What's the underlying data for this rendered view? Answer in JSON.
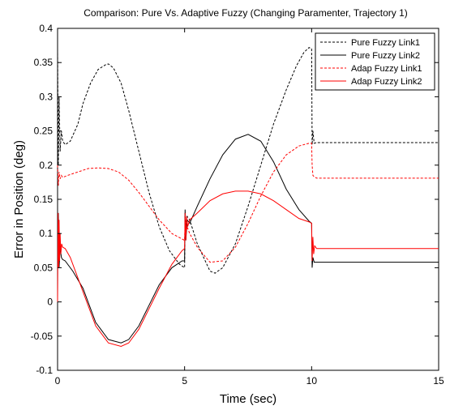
{
  "chart_data": {
    "type": "line",
    "title": "Comparison: Pure Vs. Adaptive Fuzzy (Changing Paramenter, Trajectory 1)",
    "xlabel": "Time (sec)",
    "ylabel": "Error in Position (deg)",
    "xlim": [
      0,
      15
    ],
    "ylim": [
      -0.1,
      0.4
    ],
    "xticks": [
      0,
      5,
      10,
      15
    ],
    "xtick_labels": [
      "0",
      "5",
      "10",
      "15"
    ],
    "yticks": [
      -0.1,
      -0.05,
      0,
      0.05,
      0.1,
      0.15,
      0.2,
      0.25,
      0.3,
      0.35,
      0.4
    ],
    "ytick_labels": [
      "-0.1",
      "-0.05",
      "0",
      "0.05",
      "0.1",
      "0.15",
      "0.2",
      "0.25",
      "0.3",
      "0.35",
      "0.4"
    ],
    "grid": false,
    "legend_position": "top-right",
    "series": [
      {
        "name": "Pure Fuzzy Link1",
        "color": "#000000",
        "dash": "dashed",
        "x": [
          0,
          0.03,
          0.06,
          0.1,
          0.15,
          0.2,
          0.3,
          0.5,
          0.8,
          1.0,
          1.3,
          1.6,
          1.9,
          2.0,
          2.2,
          2.5,
          2.8,
          3.2,
          3.6,
          4.0,
          4.4,
          4.8,
          5.0,
          5.02,
          5.05,
          5.1,
          5.2,
          5.5,
          6.0,
          6.2,
          6.5,
          7.0,
          7.5,
          8.0,
          8.5,
          9.0,
          9.4,
          9.7,
          9.9,
          10.0,
          10.02,
          10.05,
          10.1,
          10.2,
          11,
          12,
          13,
          14,
          15
        ],
        "y": [
          0.37,
          0.2,
          0.3,
          0.22,
          0.25,
          0.235,
          0.23,
          0.235,
          0.26,
          0.29,
          0.32,
          0.34,
          0.347,
          0.348,
          0.342,
          0.32,
          0.28,
          0.22,
          0.16,
          0.11,
          0.075,
          0.055,
          0.05,
          0.13,
          0.11,
          0.125,
          0.12,
          0.085,
          0.045,
          0.042,
          0.05,
          0.085,
          0.14,
          0.2,
          0.26,
          0.31,
          0.345,
          0.365,
          0.372,
          0.37,
          0.23,
          0.25,
          0.232,
          0.233,
          0.233,
          0.233,
          0.233,
          0.233,
          0.233
        ]
      },
      {
        "name": "Pure Fuzzy Link2",
        "color": "#000000",
        "dash": "solid",
        "x": [
          0,
          0.03,
          0.06,
          0.1,
          0.15,
          0.2,
          0.3,
          0.6,
          1.0,
          1.5,
          2.0,
          2.5,
          2.8,
          3.2,
          3.6,
          4.0,
          4.5,
          4.9,
          5.0,
          5.02,
          5.05,
          5.1,
          5.2,
          5.5,
          6.0,
          6.5,
          7.0,
          7.5,
          8.0,
          8.5,
          9.0,
          9.5,
          9.9,
          10.0,
          10.02,
          10.05,
          10.1,
          10.2,
          11,
          12,
          13,
          14,
          15
        ],
        "y": [
          0.06,
          0.13,
          0.05,
          0.08,
          0.065,
          0.062,
          0.06,
          0.045,
          0.02,
          -0.03,
          -0.055,
          -0.06,
          -0.055,
          -0.035,
          -0.005,
          0.025,
          0.05,
          0.06,
          0.06,
          0.135,
          0.09,
          0.12,
          0.115,
          0.14,
          0.18,
          0.215,
          0.238,
          0.245,
          0.235,
          0.205,
          0.165,
          0.135,
          0.118,
          0.115,
          0.05,
          0.065,
          0.058,
          0.058,
          0.058,
          0.058,
          0.058,
          0.058,
          0.058
        ]
      },
      {
        "name": "Adap Fuzzy Link1",
        "color": "#ff0000",
        "dash": "dashed",
        "x": [
          0,
          0.03,
          0.06,
          0.1,
          0.15,
          0.2,
          0.4,
          0.8,
          1.2,
          1.6,
          2.0,
          2.4,
          2.8,
          3.2,
          3.6,
          4.0,
          4.5,
          5.0,
          5.02,
          5.05,
          5.1,
          5.2,
          5.5,
          6.0,
          6.5,
          7.0,
          7.5,
          8.0,
          8.5,
          9.0,
          9.5,
          9.9,
          10.0,
          10.02,
          10.05,
          10.1,
          10.2,
          11,
          12,
          13,
          14,
          15
        ],
        "y": [
          0.2,
          0.17,
          0.19,
          0.18,
          0.185,
          0.182,
          0.185,
          0.19,
          0.195,
          0.196,
          0.195,
          0.19,
          0.178,
          0.16,
          0.14,
          0.12,
          0.1,
          0.09,
          0.12,
          0.1,
          0.11,
          0.1,
          0.08,
          0.058,
          0.06,
          0.08,
          0.115,
          0.155,
          0.19,
          0.215,
          0.228,
          0.232,
          0.232,
          0.2,
          0.185,
          0.183,
          0.181,
          0.181,
          0.181,
          0.181,
          0.181,
          0.181
        ]
      },
      {
        "name": "Adap Fuzzy Link2",
        "color": "#ff0000",
        "dash": "solid",
        "x": [
          0,
          0.02,
          0.04,
          0.06,
          0.08,
          0.1,
          0.13,
          0.16,
          0.2,
          0.3,
          0.5,
          1.0,
          1.5,
          2.0,
          2.5,
          2.8,
          3.2,
          3.6,
          4.0,
          4.5,
          4.9,
          5.0,
          5.02,
          5.05,
          5.08,
          5.12,
          5.2,
          5.5,
          6.0,
          6.5,
          7.0,
          7.5,
          8.0,
          8.5,
          9.0,
          9.5,
          9.9,
          10.0,
          10.02,
          10.05,
          10.08,
          10.12,
          10.2,
          11,
          12,
          13,
          14,
          15
        ],
        "y": [
          0,
          0.13,
          0.05,
          0.12,
          0.06,
          0.1,
          0.07,
          0.085,
          0.08,
          0.078,
          0.065,
          0.015,
          -0.035,
          -0.06,
          -0.065,
          -0.06,
          -0.04,
          -0.01,
          0.02,
          0.055,
          0.075,
          0.078,
          0.13,
          0.09,
          0.125,
          0.11,
          0.12,
          0.13,
          0.148,
          0.158,
          0.162,
          0.162,
          0.158,
          0.148,
          0.135,
          0.122,
          0.117,
          0.115,
          0.06,
          0.095,
          0.07,
          0.082,
          0.078,
          0.078,
          0.078,
          0.078,
          0.078,
          0.078
        ]
      }
    ]
  }
}
